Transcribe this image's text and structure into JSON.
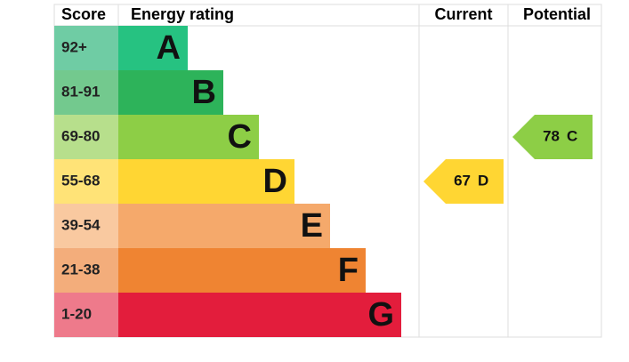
{
  "header": {
    "score": "Score",
    "rating": "Energy rating",
    "current": "Current",
    "potential": "Potential"
  },
  "bands": [
    {
      "score": "92+",
      "letter": "A",
      "color": "#26c281",
      "score_color": "#6fcca4"
    },
    {
      "score": "81-91",
      "letter": "B",
      "color": "#2db35a",
      "score_color": "#73c98e"
    },
    {
      "score": "69-80",
      "letter": "C",
      "color": "#8dce46",
      "score_color": "#b7df8c"
    },
    {
      "score": "55-68",
      "letter": "D",
      "color": "#ffd633",
      "score_color": "#ffe377"
    },
    {
      "score": "39-54",
      "letter": "E",
      "color": "#f5a96b",
      "score_color": "#f9c9a0"
    },
    {
      "score": "21-38",
      "letter": "F",
      "color": "#ef8432",
      "score_color": "#f3ad7b"
    },
    {
      "score": "1-20",
      "letter": "G",
      "color": "#e31d3c",
      "score_color": "#ee7a8b"
    }
  ],
  "current": {
    "value": 67,
    "letter": "D"
  },
  "potential": {
    "value": 78,
    "letter": "C"
  }
}
